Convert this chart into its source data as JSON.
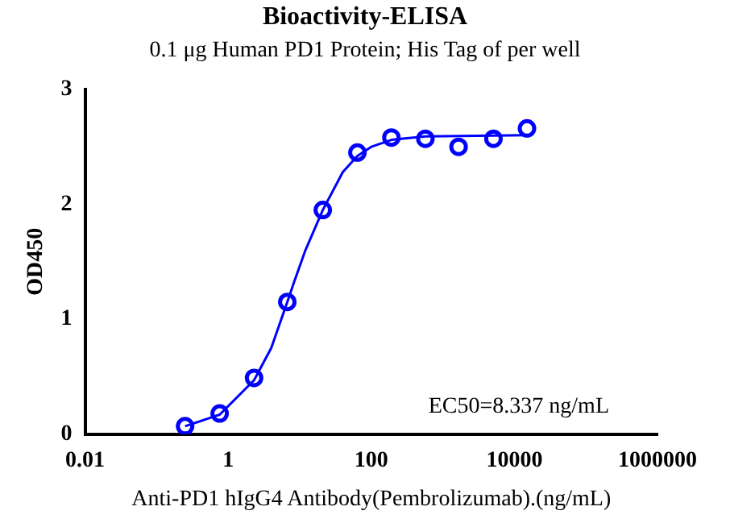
{
  "chart_data": {
    "type": "scatter",
    "title": "Bioactivity-ELISA",
    "subtitle": "0.1 μg Human PD1 Protein; His Tag of per well",
    "xlabel": "Anti-PD1 hIgG4 Antibody(Pembrolizumab).(ng/mL)",
    "ylabel": "OD450",
    "log": "x",
    "xlim": [
      0.01,
      1000000
    ],
    "xticks": [
      0.01,
      1,
      100,
      10000,
      1000000
    ],
    "ylim": [
      0,
      3
    ],
    "yticks": [
      0,
      1,
      2,
      3
    ],
    "grid": false,
    "legend": false,
    "marker": "circle",
    "annotations": [
      "EC50=8.337 ng/mL"
    ],
    "series": [
      {
        "color": "#0000ff",
        "x": [
          0.25,
          0.76,
          2.3,
          6.7,
          21,
          64,
          191,
          570,
          1660,
          5100,
          15000
        ],
        "values": [
          0.07,
          0.18,
          0.49,
          1.15,
          1.95,
          2.45,
          2.58,
          2.57,
          2.5,
          2.57,
          2.66
        ]
      },
      {
        "type": "line",
        "color": "#0000ff",
        "marker": "none",
        "x": [
          0.25,
          0.76,
          2.3,
          4,
          6.7,
          8.3,
          12,
          21,
          40,
          64,
          100,
          191,
          570,
          15000
        ],
        "values": [
          0.07,
          0.17,
          0.47,
          0.75,
          1.15,
          1.32,
          1.6,
          1.95,
          2.28,
          2.42,
          2.5,
          2.56,
          2.59,
          2.6
        ]
      }
    ]
  }
}
